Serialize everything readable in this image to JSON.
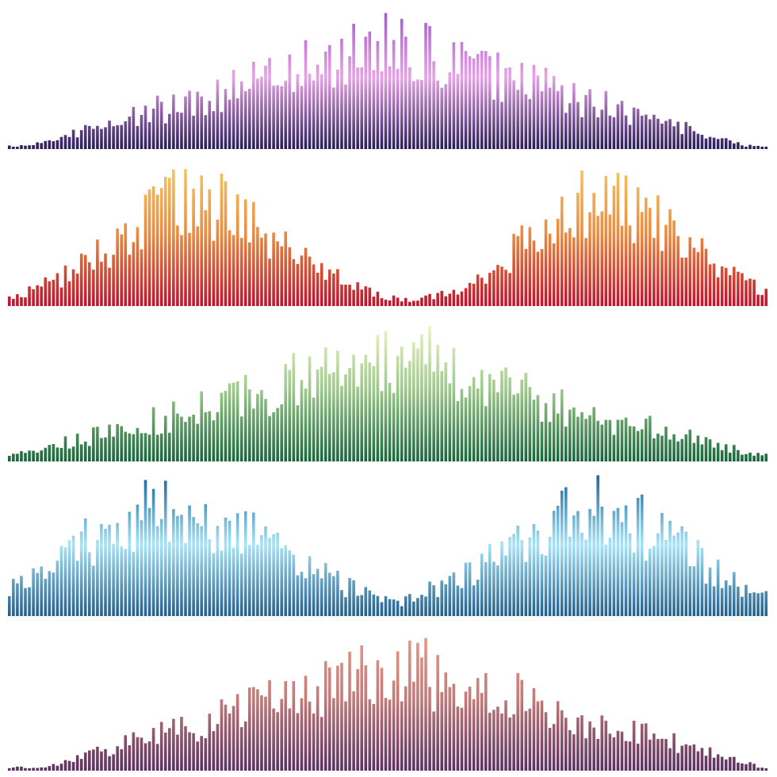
{
  "waves": [
    {
      "colors": [
        "#2b1b5c",
        "#e8a2e6",
        "#a24fcf"
      ]
    },
    {
      "colors": [
        "#c2112c",
        "#ec8a3e",
        "#f6c865"
      ]
    },
    {
      "colors": [
        "#16663a",
        "#9cc98a",
        "#f5f9c4"
      ]
    },
    {
      "colors": [
        "#1f5f8f",
        "#a6e4f8",
        "#17609a"
      ]
    },
    {
      "colors": [
        "#5c2f63",
        "#c47a78",
        "#ee9a86"
      ]
    }
  ]
}
